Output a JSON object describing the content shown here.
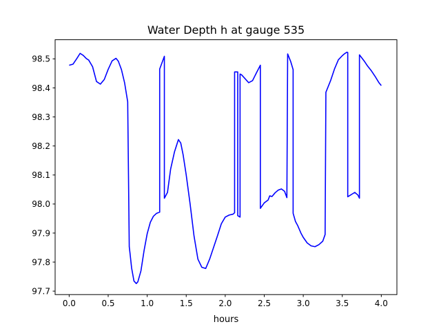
{
  "chart_data": {
    "type": "line",
    "title": "Water Depth h at gauge 535",
    "xlabel": "hours",
    "ylabel": "",
    "xlim": [
      -0.18,
      4.2
    ],
    "ylim": [
      97.688,
      98.566
    ],
    "xticks": [
      0.0,
      0.5,
      1.0,
      1.5,
      2.0,
      2.5,
      3.0,
      3.5,
      4.0
    ],
    "xtick_labels": [
      "0.0",
      "0.5",
      "1.0",
      "1.5",
      "2.0",
      "2.5",
      "3.0",
      "3.5",
      "4.0"
    ],
    "yticks": [
      97.7,
      97.8,
      97.9,
      98.0,
      98.1,
      98.2,
      98.3,
      98.4,
      98.5
    ],
    "ytick_labels": [
      "97.7",
      "97.8",
      "97.9",
      "98.0",
      "98.1",
      "98.2",
      "98.3",
      "98.4",
      "98.5"
    ],
    "grid": false,
    "series": [
      {
        "name": "",
        "color": "#0000ff",
        "x": [
          0.0,
          0.05,
          0.1,
          0.14,
          0.18,
          0.22,
          0.25,
          0.3,
          0.35,
          0.4,
          0.45,
          0.5,
          0.55,
          0.6,
          0.63,
          0.67,
          0.71,
          0.75,
          0.77,
          0.78,
          0.8,
          0.83,
          0.86,
          0.88,
          0.92,
          0.96,
          1.0,
          1.04,
          1.08,
          1.12,
          1.16,
          1.16,
          1.22,
          1.22,
          1.26,
          1.3,
          1.35,
          1.4,
          1.43,
          1.46,
          1.5,
          1.55,
          1.6,
          1.65,
          1.7,
          1.75,
          1.8,
          1.85,
          1.9,
          1.95,
          2.0,
          2.05,
          2.1,
          2.12,
          2.12,
          2.16,
          2.16,
          2.19,
          2.19,
          2.21,
          2.25,
          2.3,
          2.35,
          2.4,
          2.45,
          2.45,
          2.5,
          2.55,
          2.57,
          2.6,
          2.64,
          2.68,
          2.72,
          2.76,
          2.79,
          2.8,
          2.84,
          2.87,
          2.87,
          2.9,
          2.93,
          2.97,
          3.0,
          3.05,
          3.1,
          3.15,
          3.2,
          3.25,
          3.28,
          3.29,
          3.35,
          3.4,
          3.45,
          3.5,
          3.53,
          3.56,
          3.57,
          3.57,
          3.63,
          3.66,
          3.7,
          3.72,
          3.72,
          3.78,
          3.82,
          3.87,
          3.92,
          3.97,
          4.0
        ],
        "y": [
          98.478,
          98.482,
          98.502,
          98.519,
          98.512,
          98.501,
          98.496,
          98.473,
          98.422,
          98.413,
          98.429,
          98.464,
          98.493,
          98.502,
          98.492,
          98.463,
          98.418,
          98.352,
          97.853,
          97.83,
          97.78,
          97.735,
          97.726,
          97.732,
          97.77,
          97.84,
          97.898,
          97.937,
          97.958,
          97.968,
          97.972,
          98.465,
          98.509,
          98.02,
          98.04,
          98.12,
          98.18,
          98.222,
          98.21,
          98.17,
          98.1,
          98.0,
          97.89,
          97.81,
          97.782,
          97.778,
          97.81,
          97.85,
          97.89,
          97.932,
          97.955,
          97.962,
          97.965,
          97.97,
          98.455,
          98.455,
          97.96,
          97.955,
          98.448,
          98.445,
          98.433,
          98.418,
          98.425,
          98.452,
          98.478,
          97.985,
          98.004,
          98.014,
          98.028,
          98.026,
          98.039,
          98.048,
          98.052,
          98.044,
          98.022,
          98.517,
          98.49,
          98.463,
          97.968,
          97.94,
          97.925,
          97.9,
          97.885,
          97.866,
          97.856,
          97.853,
          97.86,
          97.872,
          97.895,
          98.385,
          98.425,
          98.465,
          98.497,
          98.511,
          98.518,
          98.523,
          98.522,
          98.025,
          98.035,
          98.04,
          98.031,
          98.02,
          98.514,
          98.493,
          98.477,
          98.46,
          98.44,
          98.418,
          98.408
        ]
      }
    ]
  }
}
